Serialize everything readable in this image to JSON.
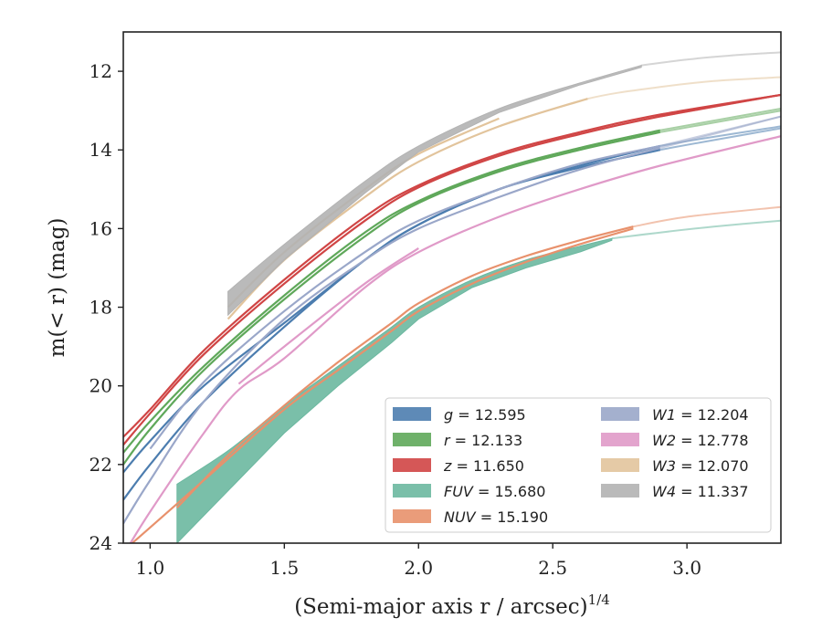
{
  "chart_data": {
    "type": "line",
    "xlabel": "(Semi-major axis r / arcsec)",
    "xlabel_exponent": "1/4",
    "ylabel": "m(< r) (mag)",
    "xlim": [
      0.9,
      3.35
    ],
    "ylim": [
      24,
      11
    ],
    "y_inverted": true,
    "grid": false,
    "legend_placement": "lower-right",
    "xticks": [
      {
        "value": 1.0,
        "label": "1.0"
      },
      {
        "value": 1.5,
        "label": "1.5"
      },
      {
        "value": 2.0,
        "label": "2.0"
      },
      {
        "value": 2.5,
        "label": "2.5"
      },
      {
        "value": 3.0,
        "label": "3.0"
      }
    ],
    "yticks": [
      {
        "value": 12,
        "label": "12"
      },
      {
        "value": 14,
        "label": "14"
      },
      {
        "value": 16,
        "label": "16"
      },
      {
        "value": 18,
        "label": "18"
      },
      {
        "value": 20,
        "label": "20"
      },
      {
        "value": 22,
        "label": "22"
      },
      {
        "value": 24,
        "label": "24"
      }
    ],
    "series": [
      {
        "name": "g",
        "total": "12.595",
        "color": "#4c7daf",
        "x": [
          0.9,
          1.0,
          1.2,
          1.5,
          1.8,
          2.0,
          2.3,
          2.6,
          2.9,
          3.35
        ],
        "y": [
          22.2,
          21.4,
          20.0,
          18.4,
          16.8,
          15.9,
          15.0,
          14.4,
          13.9,
          13.4
        ],
        "x2": [
          0.9,
          1.0,
          1.2,
          1.5,
          1.8,
          2.0,
          2.3,
          2.6,
          2.9,
          3.35
        ],
        "y2": [
          22.9,
          22.0,
          20.4,
          18.5,
          16.8,
          15.9,
          15.0,
          14.45,
          14.0,
          13.45
        ],
        "solid_end": 2.9
      },
      {
        "name": "r",
        "total": "12.133",
        "color": "#5fa85a",
        "x": [
          0.9,
          1.0,
          1.2,
          1.5,
          1.8,
          2.0,
          2.3,
          2.6,
          2.9,
          3.35
        ],
        "y": [
          21.7,
          20.9,
          19.5,
          17.7,
          16.1,
          15.3,
          14.5,
          13.95,
          13.5,
          12.95
        ],
        "x2": [
          0.9,
          1.0,
          1.2,
          1.5,
          1.8,
          2.0,
          2.3,
          2.6,
          2.9,
          3.35
        ],
        "y2": [
          22.0,
          21.1,
          19.6,
          17.8,
          16.2,
          15.35,
          14.55,
          14.0,
          13.55,
          13.0
        ],
        "solid_end": 3.15
      },
      {
        "name": "z",
        "total": "11.650",
        "color": "#d04545",
        "x": [
          0.9,
          1.0,
          1.2,
          1.5,
          1.8,
          2.0,
          2.3,
          2.6,
          2.9,
          3.35
        ],
        "y": [
          21.3,
          20.6,
          19.1,
          17.3,
          15.7,
          14.9,
          14.1,
          13.55,
          13.1,
          12.6
        ],
        "x2": [
          0.9,
          1.0,
          1.2,
          1.5,
          1.8,
          2.0,
          2.3,
          2.6,
          2.9,
          3.35
        ],
        "y2": [
          21.5,
          20.7,
          19.2,
          17.4,
          15.8,
          14.95,
          14.15,
          13.6,
          13.15,
          12.6
        ],
        "solid_end": 3.35
      },
      {
        "name": "FUV",
        "total": "15.680",
        "color": "#6cb8a0",
        "band": true,
        "x": [
          1.1,
          1.3,
          1.5,
          1.7,
          1.9,
          2.0,
          2.2,
          2.4,
          2.6,
          2.72,
          2.9,
          3.1,
          3.35
        ],
        "y": [
          22.5,
          21.6,
          20.5,
          19.5,
          18.5,
          18.0,
          17.3,
          16.8,
          16.45,
          16.25,
          16.1,
          15.95,
          15.8
        ],
        "x2": [
          1.1,
          1.3,
          1.5,
          1.7,
          1.9,
          2.0,
          2.2,
          2.4,
          2.6,
          2.72,
          2.9,
          3.1,
          3.35
        ],
        "y2": [
          24.0,
          22.6,
          21.2,
          20.0,
          18.9,
          18.3,
          17.5,
          17.0,
          16.6,
          16.3,
          16.1,
          15.95,
          15.8
        ],
        "solid_end": 2.72
      },
      {
        "name": "NUV",
        "total": "15.190",
        "color": "#e8916c",
        "x": [
          1.1,
          1.3,
          1.5,
          1.7,
          1.9,
          2.0,
          2.2,
          2.4,
          2.6,
          2.8,
          3.0,
          3.35
        ],
        "y": [
          23.1,
          21.7,
          20.5,
          19.4,
          18.4,
          17.9,
          17.2,
          16.7,
          16.3,
          15.95,
          15.7,
          15.45
        ],
        "x2": [
          0.9,
          1.0,
          1.2,
          1.5,
          1.7,
          1.9,
          2.0,
          2.2,
          2.4,
          2.6,
          2.8
        ],
        "y2": [
          24.2,
          23.6,
          22.4,
          20.6,
          19.6,
          18.6,
          18.1,
          17.4,
          16.85,
          16.4,
          16.0
        ],
        "solid_end": 2.85
      },
      {
        "name": "W1",
        "total": "12.204",
        "color": "#9aa7c9",
        "x": [
          0.9,
          1.0,
          1.2,
          1.5,
          1.8,
          2.0,
          2.3,
          2.6,
          2.9,
          3.35
        ],
        "y": [
          23.5,
          22.4,
          20.4,
          18.3,
          16.8,
          16.0,
          15.2,
          14.5,
          13.95,
          13.15
        ],
        "x2": [
          1.0,
          1.2,
          1.5,
          1.8,
          2.0,
          2.3,
          2.6,
          2.9,
          3.35
        ],
        "y2": [
          21.6,
          19.9,
          18.1,
          16.6,
          15.8,
          15.0,
          14.35,
          13.9,
          13.15
        ],
        "solid_end": 3.2
      },
      {
        "name": "W2",
        "total": "12.778",
        "color": "#e09ac8",
        "x": [
          0.9,
          1.0,
          1.2,
          1.33,
          1.5,
          1.8,
          2.0,
          2.3,
          2.6,
          2.9,
          3.35
        ],
        "y": [
          24.3,
          23.2,
          21.2,
          20.1,
          19.3,
          17.5,
          16.6,
          15.7,
          15.0,
          14.4,
          13.65
        ],
        "x2": [
          1.33,
          1.5,
          1.8,
          2.0
        ],
        "y2": [
          19.95,
          19.0,
          17.4,
          16.5
        ],
        "solid_end": 3.35
      },
      {
        "name": "W3",
        "total": "12.070",
        "color": "#e2c49c",
        "x": [
          1.29,
          1.5,
          1.8,
          2.0,
          2.3,
          2.63,
          2.9,
          3.1,
          3.35
        ],
        "y": [
          18.3,
          16.8,
          15.2,
          14.3,
          13.4,
          12.7,
          12.4,
          12.25,
          12.15
        ],
        "x2": [
          1.29,
          1.5,
          1.8,
          2.0,
          2.3
        ],
        "y2": [
          18.0,
          16.6,
          15.0,
          14.1,
          13.2
        ],
        "solid_end": 2.63
      },
      {
        "name": "W4",
        "total": "11.337",
        "color": "#b3b3b3",
        "band": true,
        "x": [
          1.29,
          1.5,
          1.8,
          2.0,
          2.3,
          2.6,
          2.83,
          3.0,
          3.2,
          3.35
        ],
        "y": [
          17.6,
          16.4,
          14.8,
          13.9,
          12.95,
          12.3,
          11.85,
          11.7,
          11.58,
          11.52
        ],
        "x2": [
          1.29,
          1.5,
          1.8,
          2.0,
          2.3,
          2.6,
          2.83,
          3.0,
          3.2,
          3.35
        ],
        "y2": [
          18.2,
          16.8,
          15.1,
          14.05,
          13.05,
          12.35,
          11.9,
          11.7,
          11.58,
          11.52
        ],
        "solid_end": 2.83
      }
    ],
    "legend": [
      {
        "name": "g",
        "value": "12.595",
        "color": "#4c7daf"
      },
      {
        "name": "r",
        "value": "12.133",
        "color": "#5fa85a"
      },
      {
        "name": "z",
        "value": "11.650",
        "color": "#d04545"
      },
      {
        "name": "FUV",
        "value": "15.680",
        "color": "#6cb8a0"
      },
      {
        "name": "NUV",
        "value": "15.190",
        "color": "#e8916c"
      },
      {
        "name": "W1",
        "value": "12.204",
        "color": "#9aa7c9"
      },
      {
        "name": "W2",
        "value": "12.778",
        "color": "#e09ac8"
      },
      {
        "name": "W3",
        "value": "12.070",
        "color": "#e2c49c"
      },
      {
        "name": "W4",
        "value": "11.337",
        "color": "#b3b3b3"
      }
    ]
  }
}
